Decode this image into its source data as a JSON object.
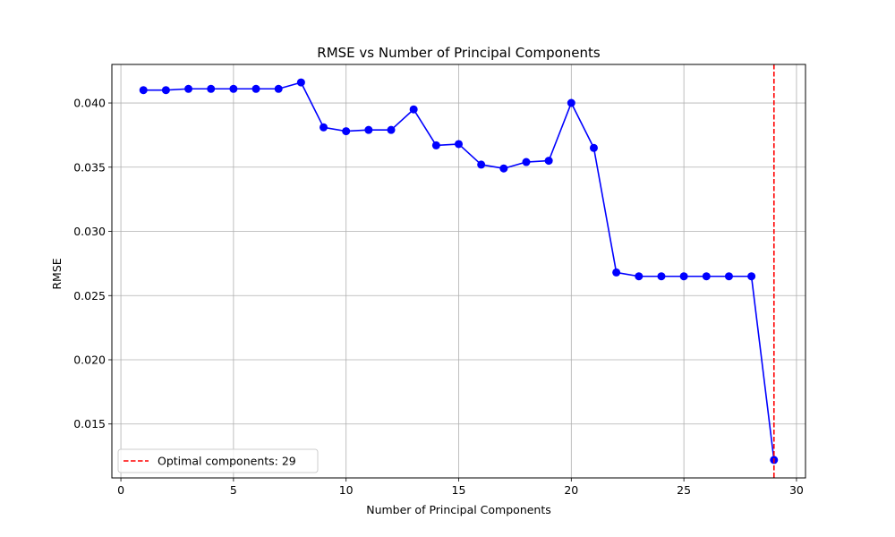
{
  "chart_data": {
    "type": "line",
    "title": "RMSE vs Number of Principal Components",
    "xlabel": "Number of Principal Components",
    "ylabel": "RMSE",
    "xlim": [
      -0.4,
      30.4
    ],
    "ylim": [
      0.0108,
      0.043
    ],
    "xticks": [
      0,
      5,
      10,
      15,
      20,
      25,
      30
    ],
    "xtick_labels": [
      "0",
      "5",
      "10",
      "15",
      "20",
      "25",
      "30"
    ],
    "yticks": [
      0.015,
      0.02,
      0.025,
      0.03,
      0.035,
      0.04
    ],
    "ytick_labels": [
      "0.015",
      "0.020",
      "0.025",
      "0.030",
      "0.035",
      "0.040"
    ],
    "grid": true,
    "series": [
      {
        "color": "#0000ff",
        "marker": "circle",
        "x": [
          1,
          2,
          3,
          4,
          5,
          6,
          7,
          8,
          9,
          10,
          11,
          12,
          13,
          14,
          15,
          16,
          17,
          18,
          19,
          20,
          21,
          22,
          23,
          24,
          25,
          26,
          27,
          28,
          29
        ],
        "y": [
          0.041,
          0.041,
          0.0411,
          0.0411,
          0.0411,
          0.0411,
          0.0411,
          0.0416,
          0.0381,
          0.0378,
          0.0379,
          0.0379,
          0.0395,
          0.0367,
          0.0368,
          0.0352,
          0.0349,
          0.0354,
          0.0355,
          0.04,
          0.0365,
          0.0268,
          0.0265,
          0.0265,
          0.0265,
          0.0265,
          0.0265,
          0.0265,
          0.0122
        ]
      }
    ],
    "vline": {
      "x": 29,
      "color": "#ff0000",
      "style": "dashed",
      "label": "Optimal components: 29"
    },
    "legend": {
      "placement": "lower-left",
      "entries": [
        "Optimal components: 29"
      ]
    }
  }
}
